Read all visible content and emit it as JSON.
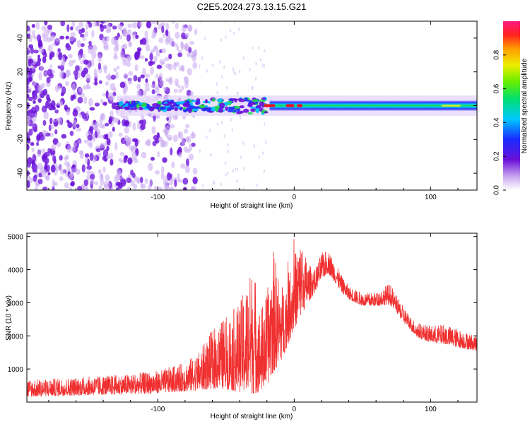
{
  "title": "C2E5.2024.273.13.15.G21",
  "colors": {
    "snr_line": "#f03030",
    "ridge_high": "#e8102a",
    "ridge_mid": "#22cc44",
    "ridge_low": "#2266ff",
    "noise": "#6a10d8"
  },
  "chart_data": [
    {
      "type": "heatmap",
      "xlabel": "Height of straight line (km)",
      "ylabel": "Frequency (Hz)",
      "xlim": [
        -196,
        134
      ],
      "ylim": [
        -50,
        50
      ],
      "xticks": [
        -100,
        0,
        100
      ],
      "xtick_labels": [
        "-100",
        "0",
        "100"
      ],
      "yticks": [
        -40,
        -20,
        0,
        20,
        40
      ],
      "ytick_labels": [
        "-40",
        "-20",
        "0",
        "20",
        "40"
      ],
      "ridge_frequency_hz": 0,
      "noise_extent_km": [
        -196,
        -72
      ],
      "colorbar": {
        "label": "Normalized spectral amplitude",
        "range": [
          0,
          1
        ],
        "ticks": [
          0.0,
          0.2,
          0.4,
          0.6,
          0.8
        ],
        "tick_labels": [
          "0.0",
          "0.2",
          "0.4",
          "0.6",
          "0.8"
        ]
      }
    },
    {
      "type": "line",
      "xlabel": "Height of straight line (km)",
      "ylabel": "SNR (10 * v/v)",
      "xlim": [
        -196,
        134
      ],
      "ylim": [
        0,
        5100
      ],
      "xticks": [
        -100,
        0,
        100
      ],
      "xtick_labels": [
        "-100",
        "0",
        "100"
      ],
      "yticks": [
        1000,
        2000,
        3000,
        4000,
        5000
      ],
      "ytick_labels": [
        "1000",
        "2000",
        "3000",
        "4000",
        "5000"
      ],
      "envelope": {
        "x": [
          -196,
          -180,
          -160,
          -140,
          -120,
          -100,
          -80,
          -70,
          -60,
          -50,
          -40,
          -30,
          -25,
          -20,
          -15,
          -10,
          -5,
          0,
          5,
          10,
          15,
          20,
          25,
          30,
          35,
          40,
          50,
          60,
          70,
          75,
          80,
          85,
          90,
          100,
          110,
          120,
          134
        ],
        "lower": [
          150,
          180,
          200,
          220,
          240,
          270,
          320,
          350,
          400,
          380,
          300,
          250,
          300,
          500,
          900,
          1200,
          1700,
          2200,
          2600,
          3000,
          3300,
          3700,
          3900,
          3600,
          3300,
          3100,
          2900,
          2900,
          2950,
          2700,
          2400,
          2200,
          1950,
          1800,
          1750,
          1650,
          1550
        ],
        "upper": [
          700,
          700,
          750,
          800,
          850,
          950,
          1200,
          1500,
          2200,
          2600,
          3000,
          4200,
          2800,
          3300,
          4600,
          3500,
          3800,
          4500,
          4900,
          4200,
          4000,
          4500,
          4600,
          4200,
          3800,
          3500,
          3300,
          3300,
          3600,
          3200,
          2900,
          2600,
          2400,
          2300,
          2350,
          2200,
          2000
        ]
      }
    }
  ]
}
